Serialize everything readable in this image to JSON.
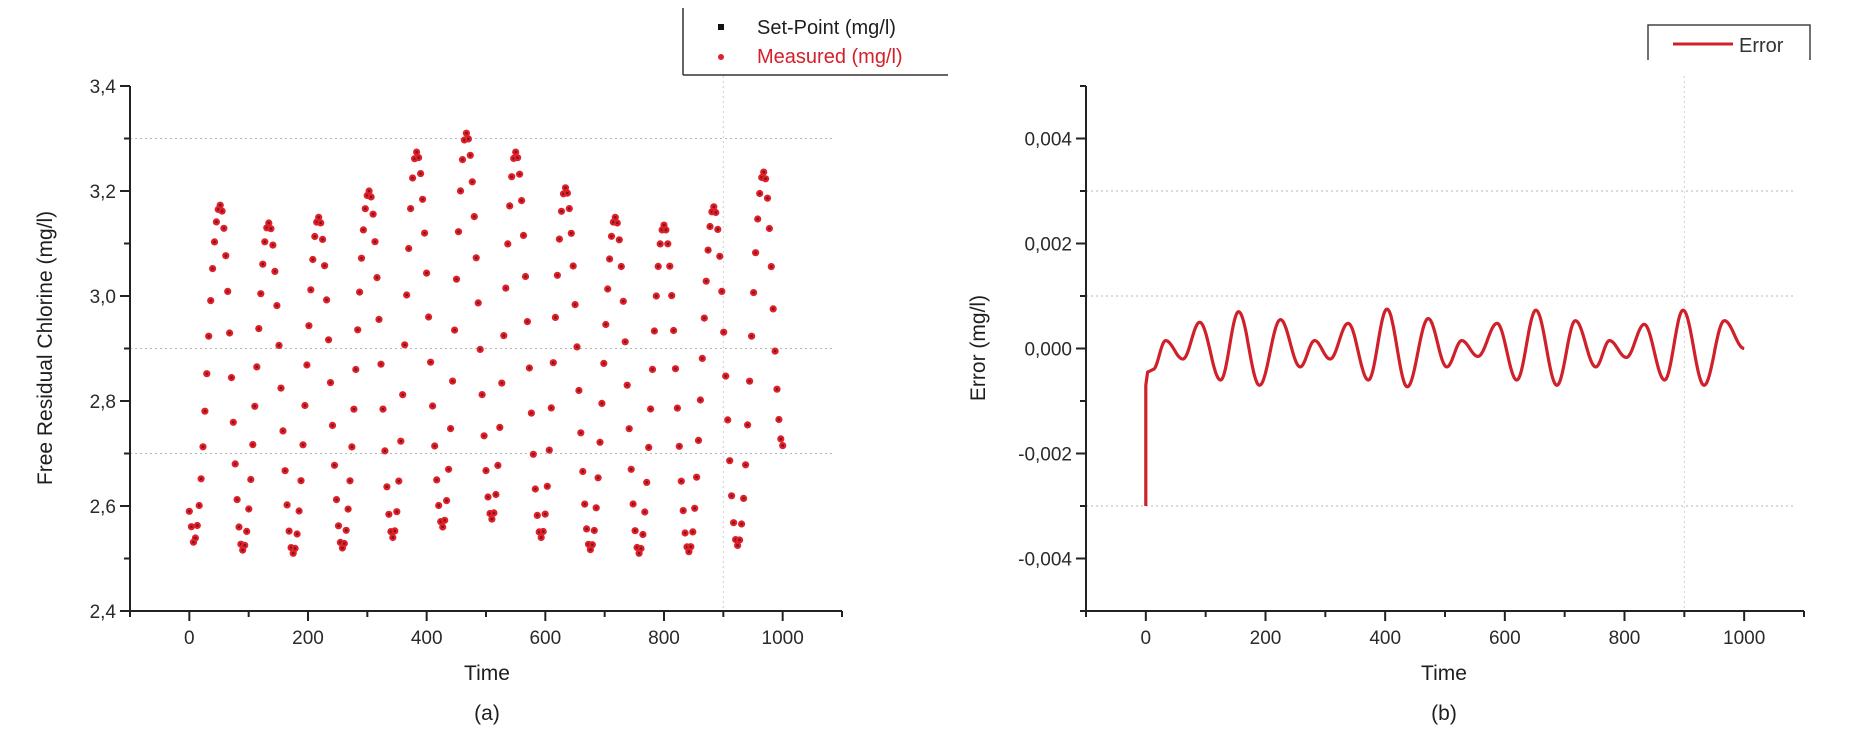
{
  "figure": {
    "panels": [
      "(a)",
      "(b)"
    ]
  },
  "chart_data": [
    {
      "id": "a",
      "type": "scatter",
      "title": "",
      "panel_label": "(a)",
      "xlabel": "Time",
      "ylabel": "Free Residual Chlorine (mg/l)",
      "xlim": [
        -100,
        1100
      ],
      "ylim": [
        2.4,
        3.4
      ],
      "xticks": [
        0,
        200,
        400,
        600,
        800,
        1000
      ],
      "xtick_labels": [
        "0",
        "200",
        "400",
        "600",
        "800",
        "1000"
      ],
      "yticks": [
        2.4,
        2.6,
        2.8,
        3.0,
        3.2,
        3.4
      ],
      "ytick_labels": [
        "2,4",
        "2,6",
        "2,8",
        "3,0",
        "3,2",
        "3,4"
      ],
      "grid": {
        "y_dotted": [
          2.7,
          2.9,
          3.3
        ],
        "x_dotted": [
          900
        ]
      },
      "legend": {
        "position": "top-right-outside",
        "entries": [
          {
            "label": "Set-Point (mg/l)",
            "marker": "square",
            "color": "#111111"
          },
          {
            "label": "Measured (mg/l)",
            "marker": "circle",
            "color": "#e0202a"
          }
        ]
      },
      "series": [
        {
          "name": "Measured (mg/l)",
          "color": "#e0202a",
          "keypoints": [
            [
              0,
              2.59
            ],
            [
              7,
              2.531
            ],
            [
              52,
              3.173
            ],
            [
              90,
              2.516
            ],
            [
              134,
              3.139
            ],
            [
              175,
              2.51
            ],
            [
              218,
              3.15
            ],
            [
              258,
              2.52
            ],
            [
              303,
              3.2
            ],
            [
              343,
              2.54
            ],
            [
              383,
              3.274
            ],
            [
              427,
              2.56
            ],
            [
              467,
              3.31
            ],
            [
              510,
              2.575
            ],
            [
              550,
              3.274
            ],
            [
              593,
              2.54
            ],
            [
              634,
              3.206
            ],
            [
              676,
              2.517
            ],
            [
              718,
              3.15
            ],
            [
              758,
              2.51
            ],
            [
              800,
              3.135
            ],
            [
              842,
              2.513
            ],
            [
              884,
              3.17
            ],
            [
              924,
              2.525
            ],
            [
              968,
              3.236
            ],
            [
              1000,
              2.715
            ]
          ]
        },
        {
          "name": "Set-Point (mg/l)",
          "color": "#111111",
          "note": "overlaps Measured; visible only as dark centers of the red markers"
        }
      ]
    },
    {
      "id": "b",
      "type": "line",
      "title": "",
      "panel_label": "(b)",
      "xlabel": "Time",
      "ylabel": "Error (mg/l)",
      "xlim": [
        -100,
        1100
      ],
      "ylim": [
        -0.005,
        0.005
      ],
      "xticks": [
        0,
        200,
        400,
        600,
        800,
        1000
      ],
      "xtick_labels": [
        "0",
        "200",
        "400",
        "600",
        "800",
        "1000"
      ],
      "yticks": [
        -0.004,
        -0.002,
        0.0,
        0.002,
        0.004
      ],
      "ytick_labels": [
        "-0,004",
        "-0,002",
        "0,000",
        "0,002",
        "0,004"
      ],
      "grid": {
        "y_dotted": [
          -0.003,
          0.001,
          0.003
        ],
        "x_dotted": [
          900
        ]
      },
      "legend": {
        "position": "top-right-outside",
        "entries": [
          {
            "label": "Error",
            "marker": "line",
            "color": "#d0202a"
          }
        ]
      },
      "series": [
        {
          "name": "Error",
          "color": "#d0202a",
          "keypoints": [
            [
              0,
              -0.003
            ],
            [
              0,
              -0.0007
            ],
            [
              3,
              -0.00045
            ],
            [
              12,
              -0.0004
            ],
            [
              33,
              0.00015
            ],
            [
              62,
              -0.0002
            ],
            [
              90,
              0.0005
            ],
            [
              125,
              -0.0006
            ],
            [
              155,
              0.0007
            ],
            [
              190,
              -0.0007
            ],
            [
              225,
              0.00055
            ],
            [
              258,
              -0.00035
            ],
            [
              282,
              0.00015
            ],
            [
              308,
              -0.0002
            ],
            [
              338,
              0.00048
            ],
            [
              372,
              -0.0006
            ],
            [
              403,
              0.00075
            ],
            [
              437,
              -0.00073
            ],
            [
              472,
              0.00057
            ],
            [
              503,
              -0.00035
            ],
            [
              528,
              0.00015
            ],
            [
              555,
              -0.00015
            ],
            [
              587,
              0.00048
            ],
            [
              620,
              -0.0006
            ],
            [
              652,
              0.00073
            ],
            [
              687,
              -0.0007
            ],
            [
              718,
              0.00053
            ],
            [
              752,
              -0.00035
            ],
            [
              775,
              0.00015
            ],
            [
              803,
              -0.00017
            ],
            [
              833,
              0.00046
            ],
            [
              867,
              -0.0006
            ],
            [
              898,
              0.00073
            ],
            [
              933,
              -0.0007
            ],
            [
              967,
              0.00053
            ],
            [
              1000,
              0.0
            ]
          ]
        }
      ]
    }
  ]
}
